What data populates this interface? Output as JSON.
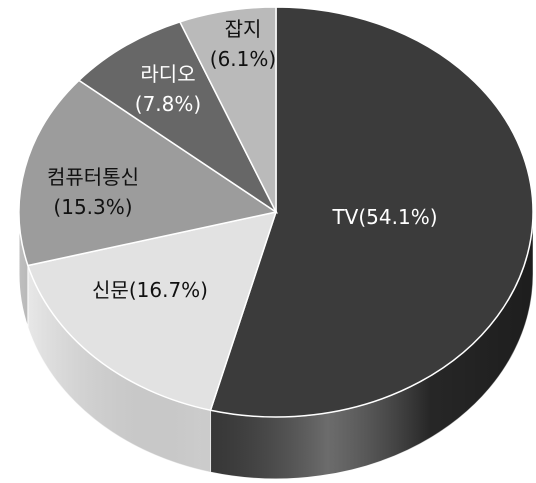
{
  "chart_data": {
    "type": "pie",
    "categories": [
      "TV",
      "신문",
      "컴퓨터통신",
      "라디오",
      "잡지"
    ],
    "values": [
      54.1,
      16.7,
      15.3,
      7.8,
      6.1
    ],
    "value_labels": [
      "(54.1%)",
      "(16.7%)",
      "(15.3%)",
      "(7.8%)",
      "(6.1%)"
    ],
    "colors": [
      "#3b3b3b",
      "#e2e2e2",
      "#9c9c9c",
      "#676767",
      "#bababa"
    ]
  }
}
